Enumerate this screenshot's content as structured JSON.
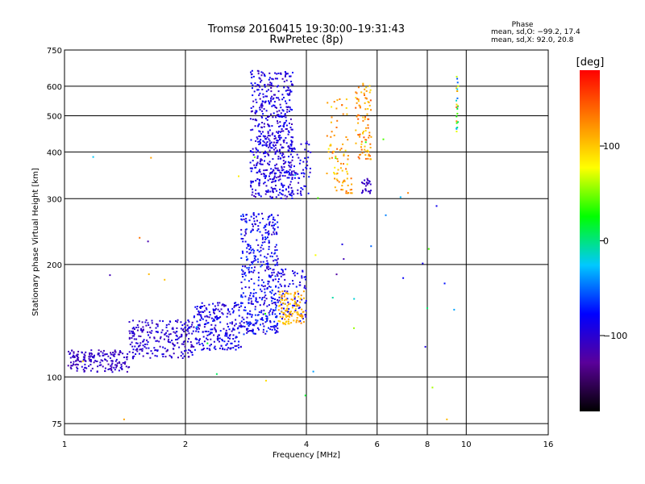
{
  "chart_data": {
    "type": "scatter",
    "title": "Tromsø 20160415 19:30:00–19:31:43",
    "subtitle": "RwPretec (8p)",
    "xlabel": "Frequency [MHz]",
    "ylabel": "Stationary phase Virtual Height [km]",
    "x_scale": "log",
    "y_scale": "log",
    "xlim": [
      1,
      16
    ],
    "ylim": [
      70,
      750
    ],
    "x_ticks": [
      1,
      2,
      4,
      6,
      8,
      10,
      16
    ],
    "x_tick_labels": [
      "1",
      "2",
      "4",
      "6",
      "8",
      "10",
      "16"
    ],
    "y_ticks": [
      75,
      100,
      200,
      300,
      400,
      500,
      600,
      750
    ],
    "y_tick_labels": [
      "75",
      "100",
      "200",
      "300",
      "400",
      "500",
      "600",
      "750"
    ],
    "grid": true,
    "stats": {
      "heading": "Phase",
      "line_o": "mean, sd,O: −99.2, 17.4",
      "line_x": "mean, sd,X:  92.0, 20.8"
    },
    "colorbar": {
      "title": "[deg]",
      "range": [
        -180,
        180
      ],
      "ticks": [
        100,
        0,
        -100
      ],
      "tick_labels": [
        "100",
        "0",
        "−100"
      ],
      "colors": [
        "#000000",
        "#5a009a",
        "#0000ff",
        "#00c8ff",
        "#00ff00",
        "#ffff00",
        "#ff8000",
        "#ff0000"
      ]
    },
    "clusters": [
      {
        "f": [
          1.02,
          1.45
        ],
        "h": [
          103,
          118
        ],
        "phase": [
          -120,
          -95
        ],
        "n": 180
      },
      {
        "f": [
          1.45,
          2.1
        ],
        "h": [
          112,
          142
        ],
        "phase": [
          -115,
          -85
        ],
        "n": 240
      },
      {
        "f": [
          2.1,
          2.75
        ],
        "h": [
          118,
          158
        ],
        "phase": [
          -110,
          -70
        ],
        "n": 230
      },
      {
        "f": [
          2.75,
          3.4
        ],
        "h": [
          130,
          275
        ],
        "phase": [
          -110,
          -60
        ],
        "n": 430
      },
      {
        "f": [
          3.4,
          4.0
        ],
        "h": [
          140,
          195
        ],
        "phase": [
          -105,
          -70
        ],
        "n": 90
      },
      {
        "f": [
          3.4,
          3.95
        ],
        "h": [
          138,
          170
        ],
        "phase": [
          90,
          130
        ],
        "n": 110
      },
      {
        "f": [
          2.9,
          3.7
        ],
        "h": [
          300,
          660
        ],
        "phase": [
          -115,
          -75
        ],
        "n": 560
      },
      {
        "f": [
          3.6,
          4.1
        ],
        "h": [
          305,
          430
        ],
        "phase": [
          -110,
          -70
        ],
        "n": 80
      },
      {
        "f": [
          4.5,
          5.1
        ],
        "h": [
          330,
          560
        ],
        "phase": [
          80,
          140
        ],
        "n": 60
      },
      {
        "f": [
          4.7,
          5.2
        ],
        "h": [
          310,
          340
        ],
        "phase": [
          100,
          140
        ],
        "n": 25
      },
      {
        "f": [
          5.3,
          5.8
        ],
        "h": [
          380,
          610
        ],
        "phase": [
          90,
          150
        ],
        "n": 90
      },
      {
        "f": [
          5.5,
          5.8
        ],
        "h": [
          310,
          340
        ],
        "phase": [
          -120,
          -90
        ],
        "n": 25
      },
      {
        "f": [
          9.45,
          9.55
        ],
        "h": [
          450,
          640
        ],
        "phase": [
          -60,
          130
        ],
        "n": 25
      },
      {
        "f": [
          1.0,
          9.6
        ],
        "h": [
          75,
          450
        ],
        "phase": [
          -130,
          140
        ],
        "n": 45
      }
    ]
  }
}
